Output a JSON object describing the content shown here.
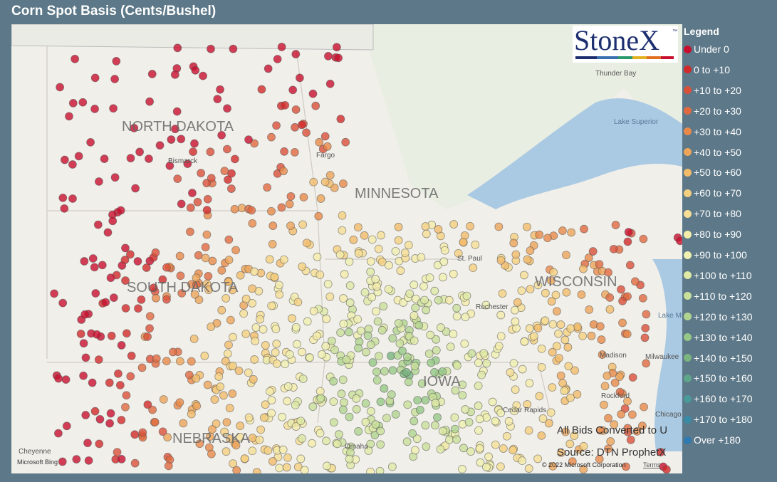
{
  "header": {
    "title": "Corn Spot Basis (Cents/Bushel)"
  },
  "logo": {
    "text": "StoneX",
    "mark": "™"
  },
  "legend": {
    "title": "Legend",
    "items": [
      {
        "label": "Under 0",
        "color": "#c8102e"
      },
      {
        "label": "0 to +10",
        "color": "#d22a2a"
      },
      {
        "label": "+10 to +20",
        "color": "#d9503a"
      },
      {
        "label": "+20 to +30",
        "color": "#e06a40"
      },
      {
        "label": "+30 to +40",
        "color": "#e8894a"
      },
      {
        "label": "+40 to +50",
        "color": "#eea55a"
      },
      {
        "label": "+50 to +60",
        "color": "#f2bb6a"
      },
      {
        "label": "+60 to +70",
        "color": "#f5cf80"
      },
      {
        "label": "+70 to +80",
        "color": "#f6df95"
      },
      {
        "label": "+80 to +90",
        "color": "#f5ecaa"
      },
      {
        "label": "+90 to +100",
        "color": "#f0f0b0"
      },
      {
        "label": "+100 to +110",
        "color": "#dfeaa5"
      },
      {
        "label": "+110 to +120",
        "color": "#c9e09a"
      },
      {
        "label": "+120 to +130",
        "color": "#b0d490"
      },
      {
        "label": "+130 to +140",
        "color": "#96c887"
      },
      {
        "label": "+140 to +150",
        "color": "#7ab47f"
      },
      {
        "label": "+150 to +160",
        "color": "#5ea68a"
      },
      {
        "label": "+160 to +170",
        "color": "#4a9a9a"
      },
      {
        "label": "+170 to +180",
        "color": "#3a8aa5"
      },
      {
        "label": "Over +180",
        "color": "#2f7ab0"
      }
    ]
  },
  "map": {
    "states": [
      "NORTH DAKOTA",
      "MINNESOTA",
      "SOUTH DAKOTA",
      "WISCONSIN",
      "NEBRASKA",
      "IOWA"
    ],
    "places": [
      "Bismarck",
      "Fargo",
      "Thunder Bay",
      "Lake Superior",
      "St. Paul",
      "Rochester",
      "Madison",
      "Milwaukee",
      "Rockford",
      "Cedar Rapids",
      "Chicago",
      "Omaha",
      "Cheyenne",
      "Lake Michigan"
    ]
  },
  "notes": {
    "conversion": "All Bids Converted to U",
    "source": "Source: DTN ProphetX"
  },
  "footer": {
    "bing": "Microsoft Bing",
    "copyright": "© 2022 Microsoft Corporation",
    "terms": "Terms"
  }
}
